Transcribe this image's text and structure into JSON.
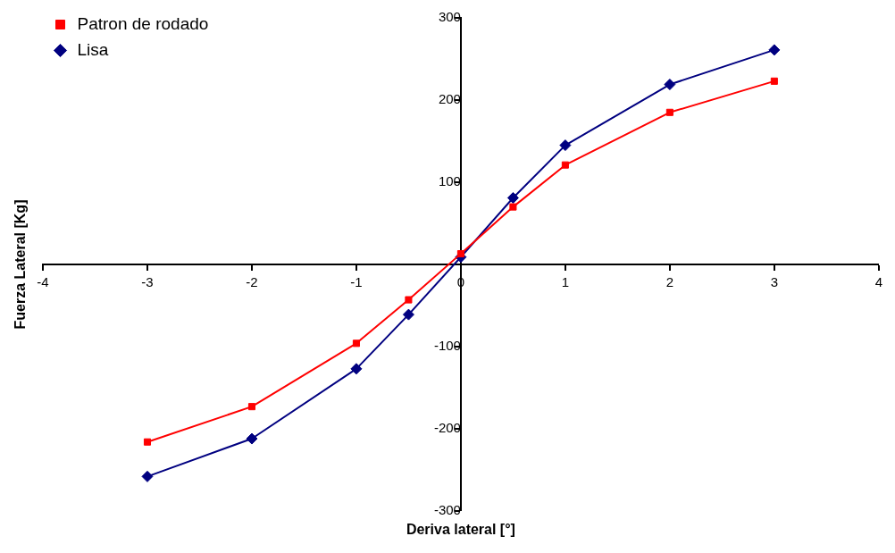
{
  "chart_data": {
    "type": "line",
    "xlabel": "Deriva lateral [°]",
    "ylabel": "Fuerza Lateral [Kg]",
    "xlim": [
      -4,
      4
    ],
    "xticks": [
      -4,
      -3,
      -2,
      -1,
      0,
      1,
      2,
      3,
      4
    ],
    "ylim": [
      -300,
      300
    ],
    "yticks": [
      -300,
      -200,
      -100,
      {
        "value": 0,
        "label": null
      },
      100,
      200,
      300
    ],
    "grid": false,
    "legend": "top left",
    "line_style": "solid",
    "series": [
      {
        "name": "Patron de rodado",
        "color": "#ff0000",
        "marker": "square",
        "x": [
          -3,
          -2,
          -1,
          -0.5,
          0,
          0.5,
          1,
          2,
          3
        ],
        "values": [
          -216,
          -173,
          -96,
          -43,
          13,
          70,
          121,
          185,
          223
        ]
      },
      {
        "name": "Lisa",
        "color": "#000080",
        "marker": "diamond",
        "x": [
          -3,
          -2,
          -1,
          -0.5,
          0,
          0.5,
          1,
          2,
          3
        ],
        "values": [
          -258,
          -212,
          -127,
          -61,
          9,
          81,
          145,
          219,
          261
        ]
      }
    ]
  }
}
